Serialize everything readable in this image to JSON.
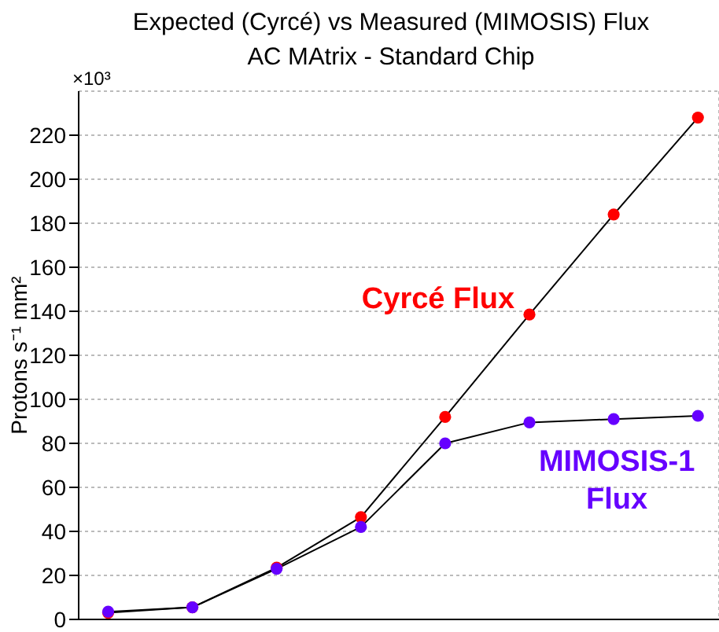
{
  "chart_data": {
    "type": "line",
    "title": "Expected (Cyrcé) vs Measured (MIMOSIS) Flux",
    "subtitle": "AC MAtrix - Standard Chip",
    "ylabel": "Protons s⁻¹ mm²",
    "annotations": [
      "×10³"
    ],
    "categories": [
      null,
      null,
      null,
      null,
      null,
      null,
      null,
      null
    ],
    "series": [
      {
        "name": "Cyrcé Flux",
        "color": "#ff0000",
        "values": [
          3,
          5.5,
          23.5,
          46.5,
          92,
          138.5,
          184,
          228
        ]
      },
      {
        "name": "MIMOSIS-1 Flux",
        "color": "#6600ff",
        "values": [
          3.5,
          5.5,
          23,
          42,
          80,
          89.5,
          91,
          92.5
        ]
      }
    ],
    "ylim": [
      0,
      240
    ],
    "yticks": [
      0,
      20,
      40,
      60,
      80,
      100,
      120,
      140,
      160,
      180,
      200,
      220
    ],
    "grid": true,
    "marker": "circle",
    "tick_labels": "y"
  }
}
